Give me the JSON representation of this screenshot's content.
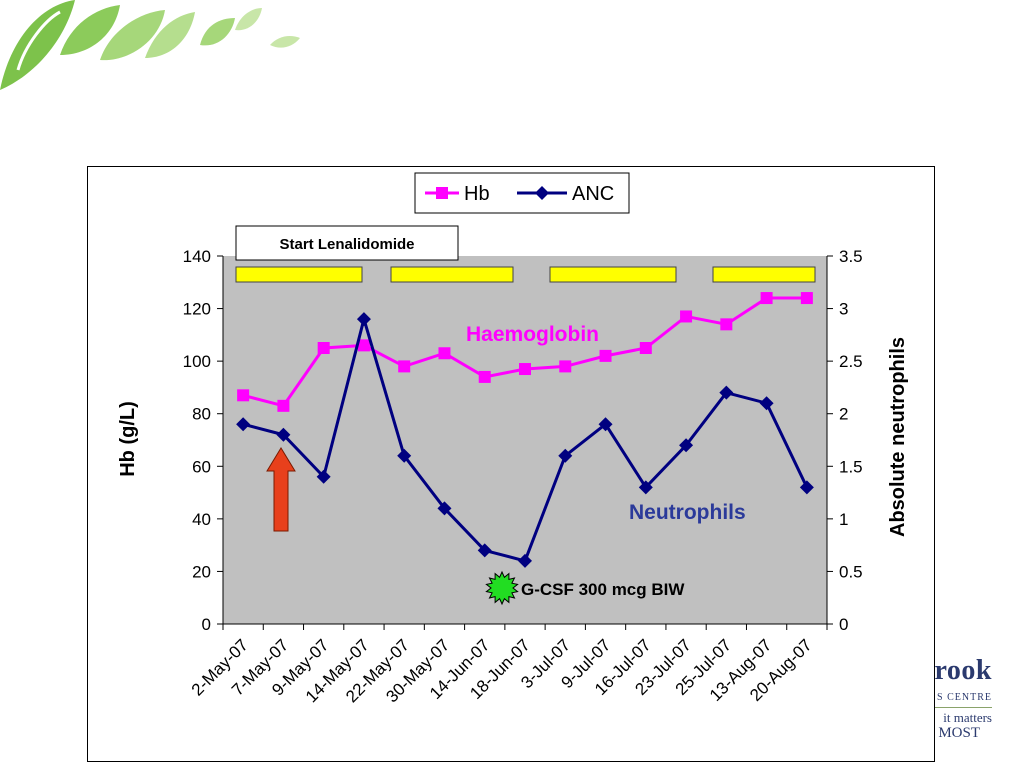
{
  "decor": {
    "leaf_colors": [
      "#7dc24b",
      "#a6d77a",
      "#c8e6a8"
    ]
  },
  "logo": {
    "line1": "rook",
    "line2": "S CENTRE",
    "line3": "it matters",
    "line4": "MOST",
    "color": "#2b3a6e"
  },
  "chart_data": {
    "type": "line",
    "categories": [
      "2-May-07",
      "7-May-07",
      "9-May-07",
      "14-May-07",
      "22-May-07",
      "30-May-07",
      "14-Jun-07",
      "18-Jun-07",
      "3-Jul-07",
      "9-Jul-07",
      "16-Jul-07",
      "23-Jul-07",
      "25-Jul-07",
      "13-Aug-07",
      "20-Aug-07"
    ],
    "series": [
      {
        "name": "Hb",
        "axis": "left",
        "color": "#ff00ff",
        "marker": "square",
        "values": [
          87,
          83,
          105,
          106,
          98,
          103,
          94,
          97,
          98,
          102,
          105,
          117,
          114,
          124,
          124
        ]
      },
      {
        "name": "ANC",
        "axis": "right",
        "color": "#000080",
        "marker": "diamond",
        "values": [
          1.9,
          1.8,
          1.4,
          2.9,
          1.6,
          1.1,
          0.7,
          0.6,
          1.6,
          1.9,
          1.3,
          1.7,
          2.2,
          2.1,
          1.3
        ]
      }
    ],
    "ylabel": "Hb (g/L)",
    "y2label": "Absolute neutrophils",
    "ylim": [
      0,
      140
    ],
    "yticks": [
      "0",
      "20",
      "40",
      "60",
      "80",
      "100",
      "120",
      "140"
    ],
    "y2lim": [
      0,
      3.5
    ],
    "y2ticks": [
      "0",
      "0.5",
      "1",
      "1.5",
      "2",
      "2.5",
      "3",
      "3.5"
    ],
    "legend": "top-center",
    "plot_background": "#c0c0c0",
    "annotations": {
      "start": "Start Lenalidomide",
      "haemoglobin": "Haemoglobin",
      "neutrophils": "Neutrophils",
      "gcsf": "G-CSF 300 mcg BIW"
    },
    "annotation_colors": {
      "start_bars": "#ffff00",
      "arrow": "#e8401c",
      "gcsf_star": "#22dd22"
    }
  }
}
